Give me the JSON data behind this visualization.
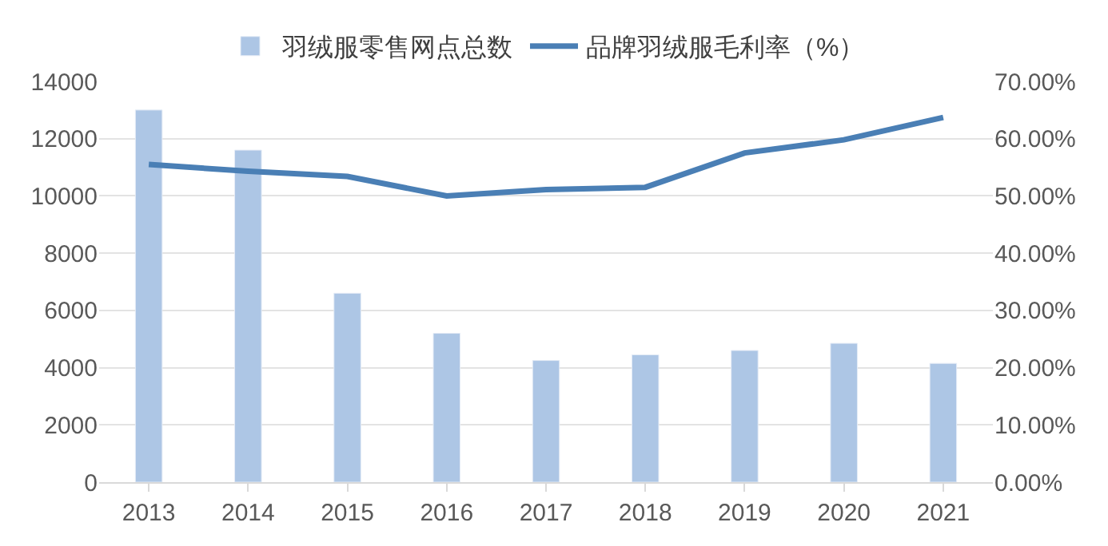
{
  "chart_data": {
    "type": "bar",
    "categories": [
      "2013",
      "2014",
      "2015",
      "2016",
      "2017",
      "2018",
      "2019",
      "2020",
      "2021"
    ],
    "series": [
      {
        "name": "羽绒服零售网点总数",
        "color": "#adc6e5",
        "values": [
          13000,
          11600,
          6600,
          5200,
          4250,
          4450,
          4600,
          4850,
          4150
        ]
      },
      {
        "name": "品牌羽绒服毛利率（%）",
        "type": "line",
        "axis": "y2",
        "color": "#4a7fb5",
        "values": [
          55.5,
          54.3,
          53.4,
          50.0,
          51.1,
          51.5,
          57.5,
          59.8,
          63.7
        ]
      }
    ],
    "ylim": [
      0,
      14000
    ],
    "yticks": [
      0,
      2000,
      4000,
      6000,
      8000,
      10000,
      12000,
      14000
    ],
    "y2lim": [
      0,
      70
    ],
    "y2ticks": [
      {
        "value": 0,
        "label": "0.00%"
      },
      {
        "value": 10,
        "label": "10.00%"
      },
      {
        "value": 20,
        "label": "20.00%"
      },
      {
        "value": 30,
        "label": "30.00%"
      },
      {
        "value": 40,
        "label": "40.00%"
      },
      {
        "value": 50,
        "label": "50.00%"
      },
      {
        "value": 60,
        "label": "60.00%"
      },
      {
        "value": 70,
        "label": "70.00%"
      }
    ],
    "grid": "y",
    "legend": "top",
    "marker": "none",
    "line_style": "solid"
  }
}
